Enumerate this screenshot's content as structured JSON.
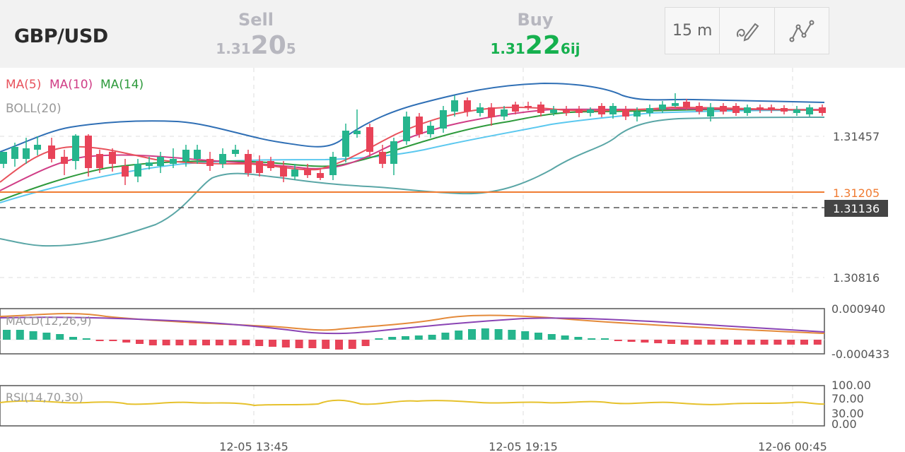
{
  "header": {
    "pair": "GBP/USD",
    "sell": {
      "label": "Sell",
      "price_small": "1.31",
      "price_big": "20",
      "price_tail": "5"
    },
    "buy": {
      "label": "Buy",
      "price_small": "1.31",
      "price_big": "22",
      "price_tail": "6ij"
    },
    "timeframe": "15 m",
    "draw_tool_icon": "pen-icon",
    "indicator_tool_icon": "line-chart-icon"
  },
  "legend": {
    "ma5": "MA(5)",
    "ma10": "MA(10)",
    "ma14": "MA(14)",
    "boll": "BOLL(20)",
    "macd": "MACD(12,26,9)",
    "rsi": "RSI(14,70,30)"
  },
  "colors": {
    "up": "#26b58d",
    "down": "#e84358",
    "ma5": "#e8525c",
    "ma10": "#d03d86",
    "ma14": "#2e9a3c",
    "boll_mid": "#5bc8ef",
    "boll_upper": "#2f6fb5",
    "boll_lower": "#5aa6a6",
    "price_line": "#f07c33",
    "macd_dif": "#8a44b4",
    "macd_dea": "#e48a3a",
    "rsi": "#e6c12c"
  },
  "price_axis": {
    "ticks": [
      "1.31457",
      "1.30816"
    ],
    "price_line_label": "1.31205",
    "current_label": "1.31136"
  },
  "macd_axis": {
    "top": "0.000940",
    "bottom": "-0.000433"
  },
  "rsi_axis": {
    "ticks": [
      "100.00",
      "70.00",
      "30.00",
      "0.00"
    ]
  },
  "time_axis": [
    "12-05 13:45",
    "12-05 19:15",
    "12-06 00:45"
  ]
}
